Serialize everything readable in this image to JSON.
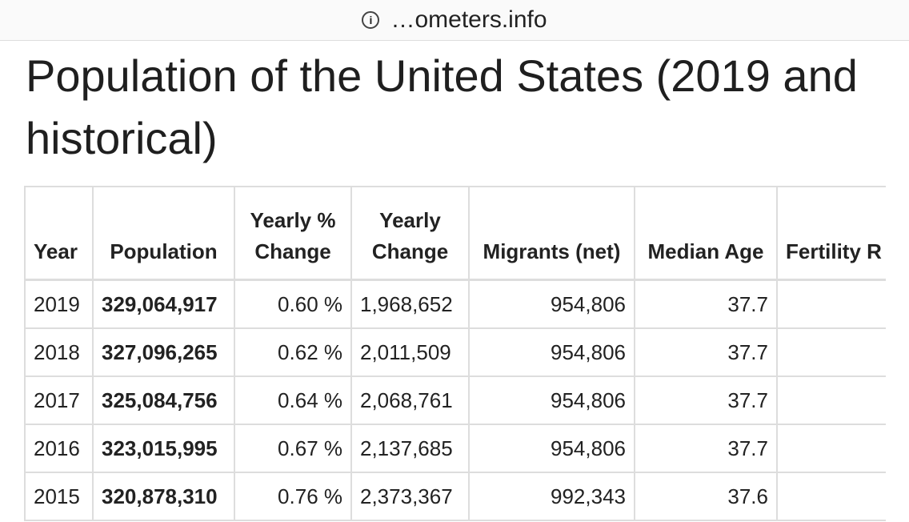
{
  "browser": {
    "url": "…ometers.info"
  },
  "header": {
    "title": "Population of the United States (2019 and historical)"
  },
  "table": {
    "columns": [
      "Year",
      "Population",
      "Yearly % Change",
      "Yearly Change",
      "Migrants (net)",
      "Median Age",
      "Fertility R"
    ],
    "rows": [
      [
        "2019",
        "329,064,917",
        "0.60 %",
        "1,968,652",
        "954,806",
        "37.7"
      ],
      [
        "2018",
        "327,096,265",
        "0.62 %",
        "2,011,509",
        "954,806",
        "37.7"
      ],
      [
        "2017",
        "325,084,756",
        "0.64 %",
        "2,068,761",
        "954,806",
        "37.7"
      ],
      [
        "2016",
        "323,015,995",
        "0.67 %",
        "2,137,685",
        "954,806",
        "37.7"
      ],
      [
        "2015",
        "320,878,310",
        "0.76 %",
        "2,373,367",
        "992,343",
        "37.6"
      ]
    ]
  }
}
